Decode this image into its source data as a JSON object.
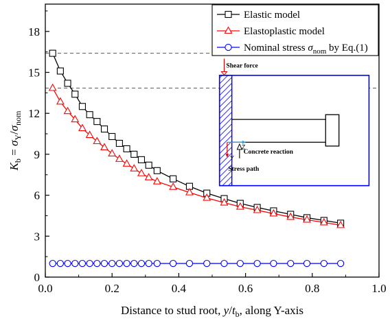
{
  "chart_data": {
    "type": "line",
    "xlabel": {
      "prefix": "Distance to stud root, ",
      "var": "y",
      "mid": "/",
      "var2": "t",
      "sub2": "b",
      "suffix": ", along Y-axis"
    },
    "ylabel": {
      "var": "K",
      "sub": "b",
      "eq": " = ",
      "var2": "σ",
      "sub2": "Y",
      "mid": "/",
      "var3": "σ",
      "sub3": "nom"
    },
    "xlim": [
      0.0,
      1.0
    ],
    "ylim": [
      0,
      20
    ],
    "xticks": [
      "0.0",
      "0.2",
      "0.4",
      "0.6",
      "0.8",
      "1.0"
    ],
    "yticks": [
      "0",
      "3",
      "6",
      "9",
      "12",
      "15",
      "18"
    ],
    "reference_lines_y": [
      16.4,
      13.85
    ],
    "legend_position": "top-right",
    "series": [
      {
        "name": "Elastic model",
        "color": "#000000",
        "marker": "square",
        "x": [
          0.022,
          0.045,
          0.067,
          0.089,
          0.111,
          0.133,
          0.155,
          0.177,
          0.2,
          0.222,
          0.244,
          0.266,
          0.288,
          0.31,
          0.335,
          0.383,
          0.432,
          0.484,
          0.536,
          0.584,
          0.635,
          0.684,
          0.735,
          0.784,
          0.835,
          0.885
        ],
        "y": [
          16.4,
          15.1,
          14.2,
          13.4,
          12.5,
          11.9,
          11.4,
          10.85,
          10.3,
          9.8,
          9.4,
          9.0,
          8.6,
          8.2,
          7.8,
          7.2,
          6.65,
          6.15,
          5.75,
          5.4,
          5.1,
          4.85,
          4.6,
          4.35,
          4.15,
          3.95
        ]
      },
      {
        "name": "Elastoplastic model",
        "color": "#ff0000",
        "marker": "triangle",
        "x": [
          0.022,
          0.045,
          0.067,
          0.089,
          0.111,
          0.133,
          0.155,
          0.177,
          0.2,
          0.222,
          0.244,
          0.266,
          0.288,
          0.31,
          0.335,
          0.383,
          0.432,
          0.484,
          0.536,
          0.584,
          0.635,
          0.684,
          0.735,
          0.784,
          0.835,
          0.885
        ],
        "y": [
          13.85,
          12.85,
          12.15,
          11.55,
          10.9,
          10.4,
          9.95,
          9.5,
          9.05,
          8.65,
          8.3,
          7.95,
          7.6,
          7.3,
          7.0,
          6.6,
          6.2,
          5.8,
          5.45,
          5.15,
          4.9,
          4.65,
          4.4,
          4.2,
          4.0,
          3.8
        ]
      },
      {
        "name": "Nominal stress",
        "sigma": "σ",
        "sub": "nom",
        "name_suffix": " by Eq.(1)",
        "color": "#0000ff",
        "marker": "circle",
        "x": [
          0.022,
          0.045,
          0.067,
          0.089,
          0.111,
          0.133,
          0.155,
          0.177,
          0.2,
          0.222,
          0.244,
          0.266,
          0.288,
          0.31,
          0.335,
          0.383,
          0.432,
          0.484,
          0.536,
          0.584,
          0.635,
          0.684,
          0.735,
          0.784,
          0.835,
          0.885
        ],
        "y": [
          1,
          1,
          1,
          1,
          1,
          1,
          1,
          1,
          1,
          1,
          1,
          1,
          1,
          1,
          1,
          1,
          1,
          1,
          1,
          1,
          1,
          1,
          1,
          1,
          1,
          1
        ]
      }
    ],
    "inset": {
      "shear_force": "Shear force",
      "concrete_reaction": "Concrete  reaction",
      "stress_path": "Stress  path",
      "axis_z": "Z",
      "axis_y": "Y"
    }
  }
}
